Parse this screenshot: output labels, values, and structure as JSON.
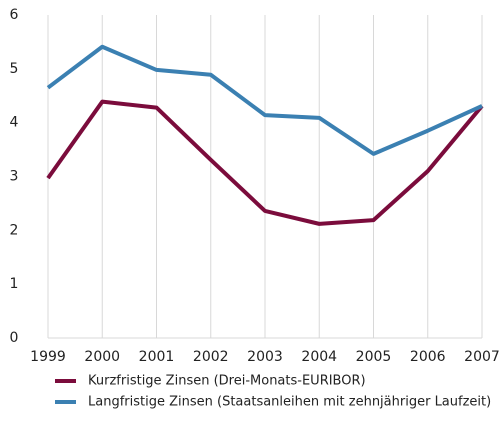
{
  "chart_data": {
    "type": "line",
    "categories": [
      "1999",
      "2000",
      "2001",
      "2002",
      "2003",
      "2004",
      "2005",
      "2006",
      "2007"
    ],
    "series": [
      {
        "name": "Kurzfristige Zinsen (Drei-Monats-EURIBOR)",
        "color": "#7b0c3c",
        "values": [
          2.97,
          4.39,
          4.28,
          3.31,
          2.36,
          2.12,
          2.19,
          3.1,
          4.31
        ]
      },
      {
        "name": "Langfristige Zinsen (Staatsanleihen mit zehnjähriger Laufzeit)",
        "color": "#3b80b2",
        "values": [
          4.65,
          5.41,
          4.98,
          4.89,
          4.14,
          4.09,
          3.42,
          3.85,
          4.31
        ]
      }
    ],
    "ylim": [
      0,
      6
    ],
    "yticks": [
      0,
      1,
      2,
      3,
      4,
      5,
      6
    ],
    "grid": true
  }
}
